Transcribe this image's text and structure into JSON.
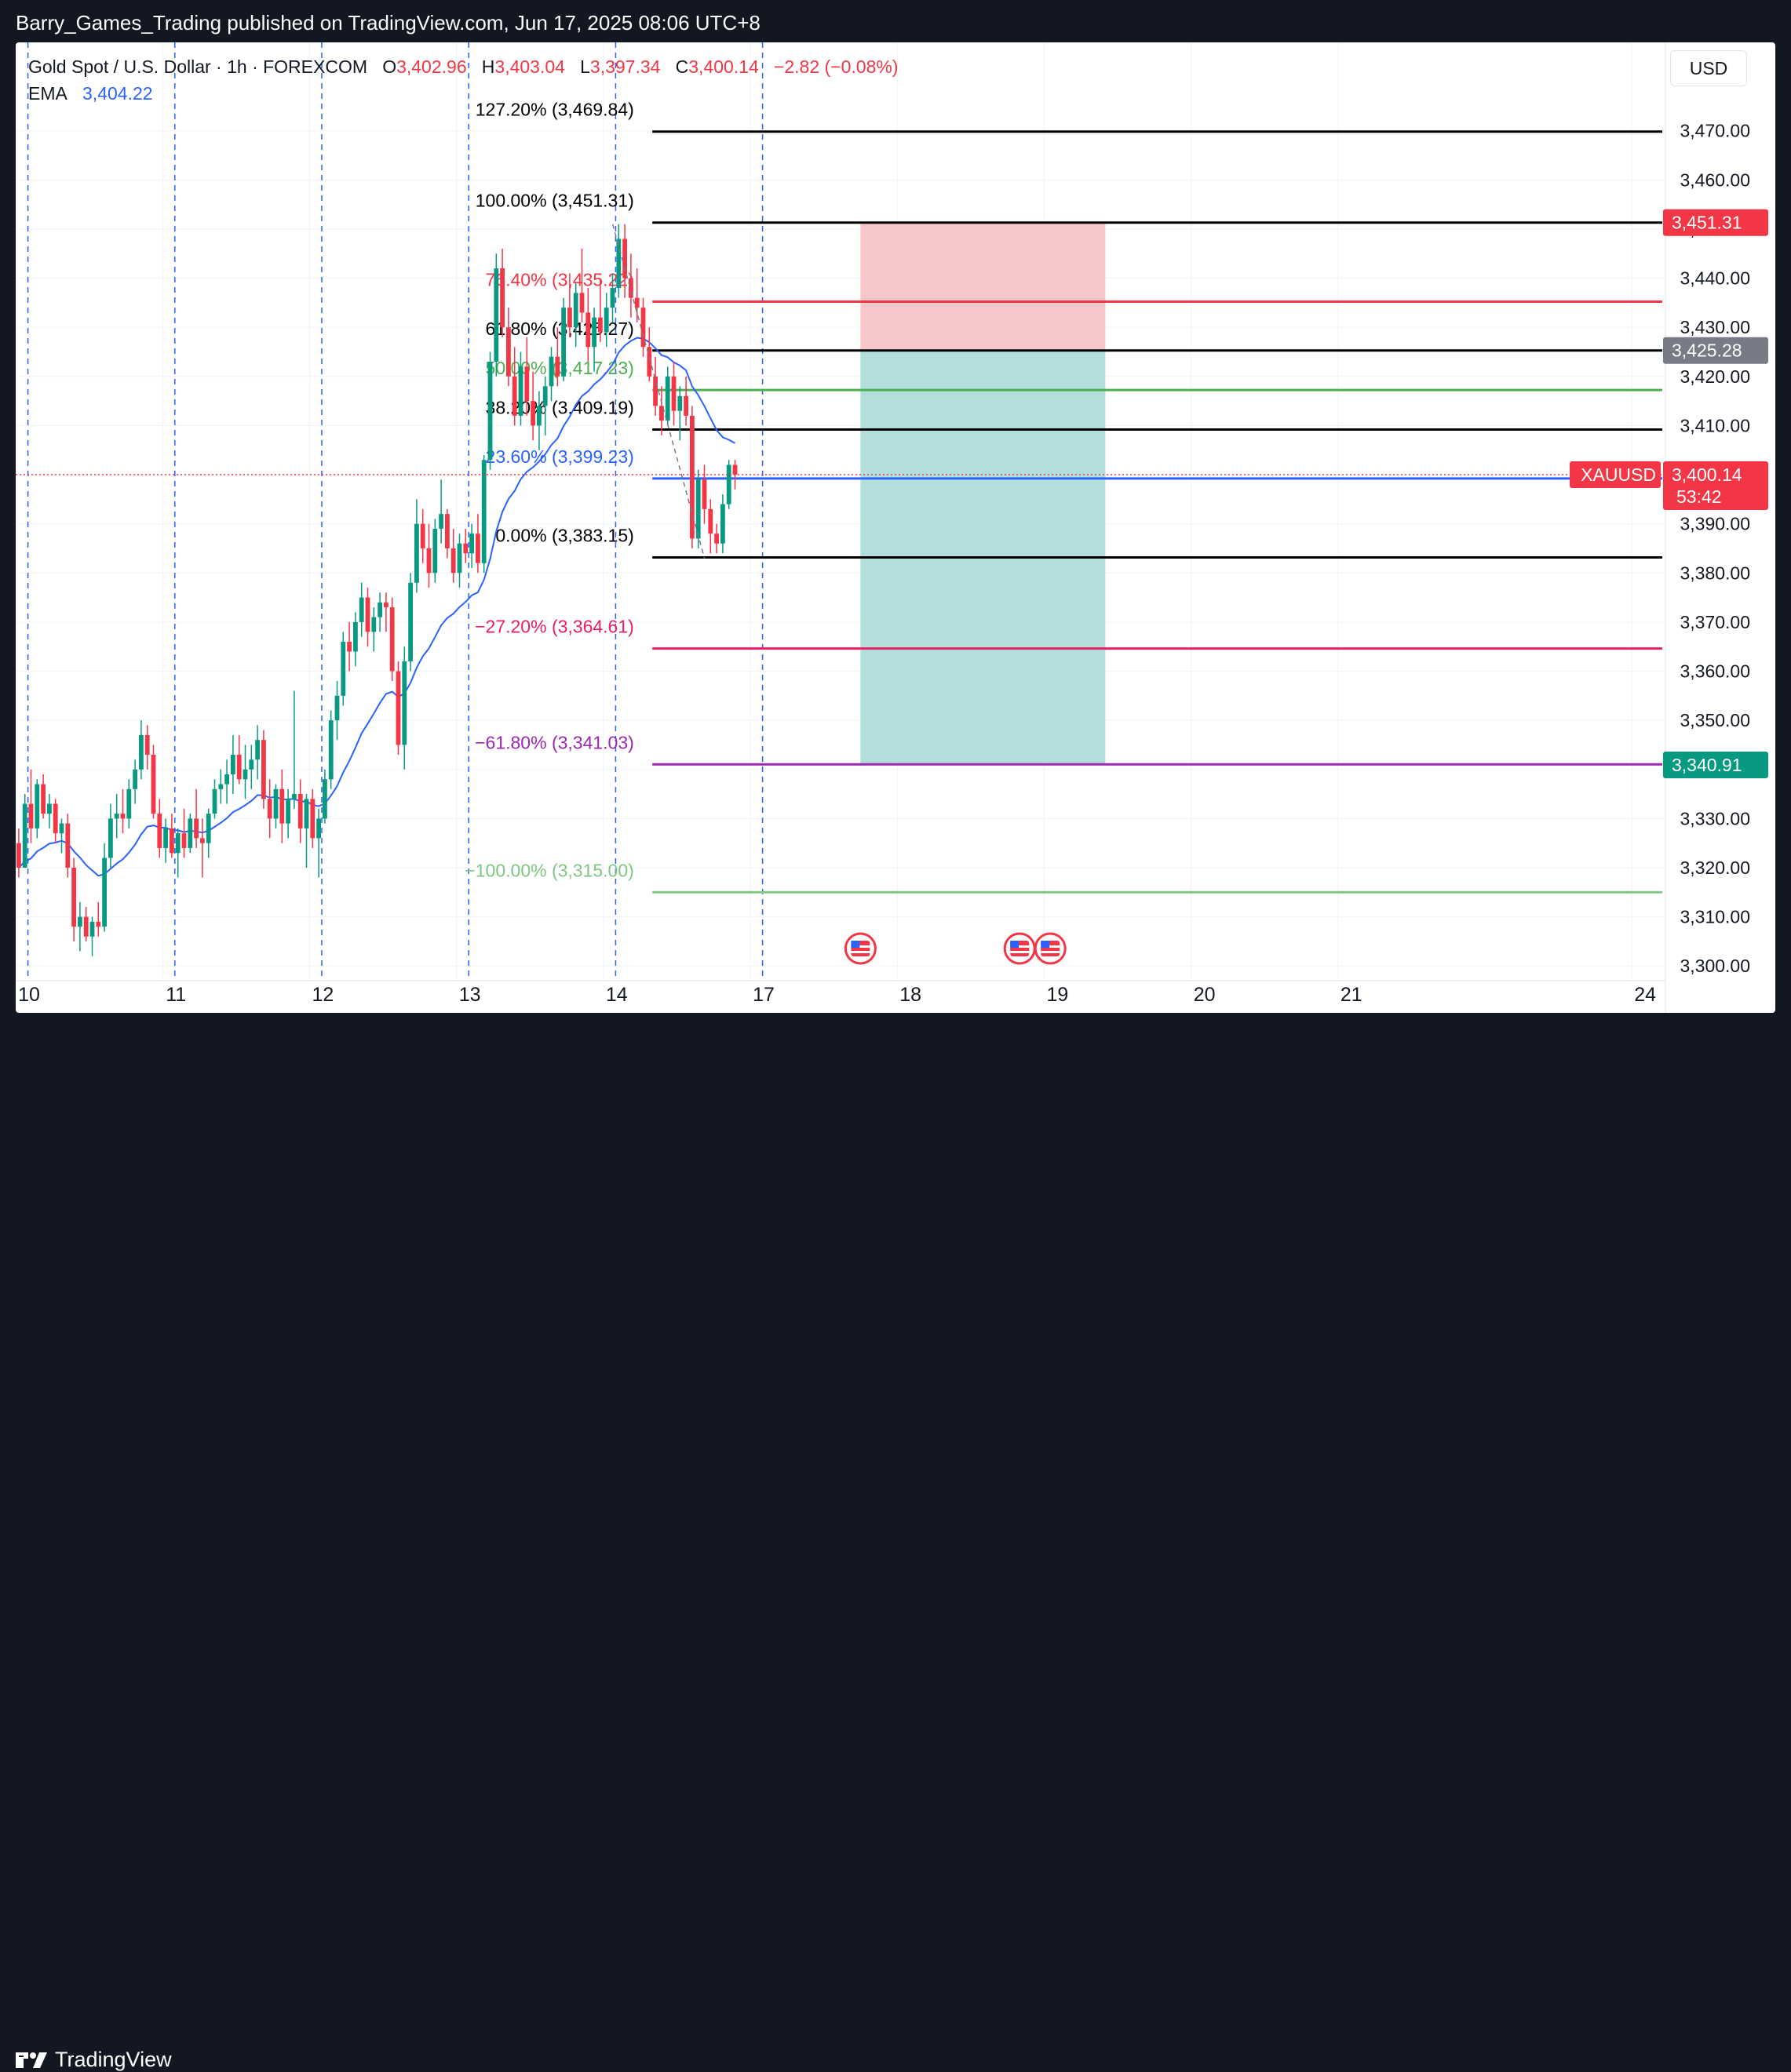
{
  "publisher_line": "Barry_Games_Trading published on TradingView.com, Jun 17, 2025 08:06 UTC+8",
  "footer": {
    "brand": "TradingView",
    "logo_icon": "tradingview-logo-icon"
  },
  "legend": {
    "symbol": "Gold Spot / U.S. Dollar · 1h · FOREXCOM",
    "o_label": "O",
    "o_value": "3,402.96",
    "h_label": "H",
    "h_value": "3,403.04",
    "l_label": "L",
    "l_value": "3,397.34",
    "c_label": "C",
    "c_value": "3,400.14",
    "change": "−2.82 (−0.08%)",
    "ema_label": "EMA",
    "ema_value": "3,404.22"
  },
  "currency_button": "USD",
  "colors": {
    "up": "#089981",
    "down": "#f23645",
    "ema": "#2962ff",
    "session_line": "#2962ff",
    "stop_zone": "#f7c6c8",
    "target_zone": "#b2dfdb"
  },
  "chart_data": {
    "type": "candlestick",
    "symbol": "XAUUSD",
    "timeframe": "1h",
    "ylim": [
      3297,
      3488
    ],
    "y_ticks": [
      "3,300.00",
      "3,310.00",
      "3,320.00",
      "3,330.00",
      "3,340.00",
      "3,350.00",
      "3,360.00",
      "3,370.00",
      "3,380.00",
      "3,390.00",
      "3,400.00",
      "3,410.00",
      "3,420.00",
      "3,430.00",
      "3,440.00",
      "3,450.00",
      "3,460.00",
      "3,470.00"
    ],
    "y_tick_values": [
      3300,
      3310,
      3320,
      3330,
      3340,
      3350,
      3360,
      3370,
      3380,
      3390,
      3400,
      3410,
      3420,
      3430,
      3440,
      3450,
      3460,
      3470
    ],
    "x_labels": [
      "10",
      "11",
      "12",
      "13",
      "14",
      "17",
      "18",
      "19",
      "20",
      "21",
      "24"
    ],
    "x_label_bars": [
      0,
      24,
      48,
      72,
      96,
      120,
      144,
      168,
      192,
      216,
      264
    ],
    "candles": [
      [
        3325,
        3328,
        3318,
        3320
      ],
      [
        3320,
        3335,
        3320,
        3333
      ],
      [
        3333,
        3340,
        3325,
        3328
      ],
      [
        3328,
        3338,
        3326,
        3337
      ],
      [
        3337,
        3339,
        3330,
        3331
      ],
      [
        3331,
        3335,
        3328,
        3333
      ],
      [
        3333,
        3334,
        3325,
        3327
      ],
      [
        3327,
        3330,
        3323,
        3329
      ],
      [
        3329,
        3331,
        3318,
        3320
      ],
      [
        3320,
        3322,
        3305,
        3308
      ],
      [
        3308,
        3313,
        3303,
        3310
      ],
      [
        3310,
        3312,
        3305,
        3306
      ],
      [
        3306,
        3310,
        3302,
        3309
      ],
      [
        3309,
        3313,
        3306,
        3308
      ],
      [
        3308,
        3325,
        3307,
        3322
      ],
      [
        3322,
        3333,
        3320,
        3330
      ],
      [
        3330,
        3335,
        3326,
        3331
      ],
      [
        3331,
        3336,
        3327,
        3330
      ],
      [
        3330,
        3338,
        3328,
        3336
      ],
      [
        3336,
        3342,
        3333,
        3340
      ],
      [
        3340,
        3350,
        3338,
        3347
      ],
      [
        3347,
        3349,
        3340,
        3343
      ],
      [
        3343,
        3345,
        3330,
        3331
      ],
      [
        3331,
        3334,
        3322,
        3324
      ],
      [
        3324,
        3330,
        3321,
        3328
      ],
      [
        3328,
        3331,
        3322,
        3323
      ],
      [
        3323,
        3328,
        3318,
        3327
      ],
      [
        3327,
        3332,
        3322,
        3324
      ],
      [
        3324,
        3331,
        3323,
        3330
      ],
      [
        3330,
        3336,
        3324,
        3326
      ],
      [
        3326,
        3330,
        3318,
        3325
      ],
      [
        3325,
        3332,
        3322,
        3331
      ],
      [
        3331,
        3338,
        3330,
        3336
      ],
      [
        3336,
        3340,
        3333,
        3337
      ],
      [
        3337,
        3342,
        3333,
        3339
      ],
      [
        3339,
        3347,
        3335,
        3343
      ],
      [
        3343,
        3347,
        3337,
        3338
      ],
      [
        3338,
        3345,
        3334,
        3340
      ],
      [
        3340,
        3345,
        3336,
        3342
      ],
      [
        3342,
        3349,
        3338,
        3346
      ],
      [
        3346,
        3348,
        3332,
        3334
      ],
      [
        3334,
        3338,
        3326,
        3330
      ],
      [
        3330,
        3337,
        3328,
        3336
      ],
      [
        3336,
        3340,
        3325,
        3329
      ],
      [
        3329,
        3336,
        3326,
        3334
      ],
      [
        3334,
        3356,
        3332,
        3335
      ],
      [
        3335,
        3338,
        3325,
        3328
      ],
      [
        3328,
        3335,
        3320,
        3334
      ],
      [
        3334,
        3336,
        3324,
        3326
      ],
      [
        3326,
        3332,
        3318,
        3330
      ],
      [
        3330,
        3340,
        3329,
        3338
      ],
      [
        3338,
        3352,
        3336,
        3350
      ],
      [
        3350,
        3358,
        3346,
        3355
      ],
      [
        3355,
        3368,
        3353,
        3366
      ],
      [
        3366,
        3370,
        3360,
        3364
      ],
      [
        3364,
        3372,
        3361,
        3370
      ],
      [
        3370,
        3378,
        3367,
        3375
      ],
      [
        3375,
        3377,
        3365,
        3368
      ],
      [
        3368,
        3373,
        3364,
        3371
      ],
      [
        3371,
        3376,
        3368,
        3374
      ],
      [
        3374,
        3376,
        3368,
        3373
      ],
      [
        3373,
        3375,
        3358,
        3360
      ],
      [
        3360,
        3362,
        3343,
        3345
      ],
      [
        3345,
        3365,
        3340,
        3362
      ],
      [
        3362,
        3380,
        3360,
        3378
      ],
      [
        3378,
        3395,
        3376,
        3390
      ],
      [
        3390,
        3393,
        3382,
        3385
      ],
      [
        3385,
        3390,
        3377,
        3380
      ],
      [
        3380,
        3391,
        3378,
        3389
      ],
      [
        3389,
        3399,
        3386,
        3392
      ],
      [
        3392,
        3393,
        3383,
        3385
      ],
      [
        3385,
        3389,
        3378,
        3380
      ],
      [
        3380,
        3388,
        3377,
        3386
      ],
      [
        3386,
        3389,
        3382,
        3384
      ],
      [
        3384,
        3390,
        3381,
        3388
      ],
      [
        3388,
        3392,
        3380,
        3382
      ],
      [
        3382,
        3404,
        3380,
        3403
      ],
      [
        3403,
        3425,
        3401,
        3423
      ],
      [
        3423,
        3445,
        3420,
        3442
      ],
      [
        3442,
        3446,
        3428,
        3430
      ],
      [
        3430,
        3434,
        3418,
        3420
      ],
      [
        3420,
        3426,
        3410,
        3412
      ],
      [
        3412,
        3425,
        3410,
        3422
      ],
      [
        3422,
        3428,
        3412,
        3415
      ],
      [
        3415,
        3421,
        3407,
        3410
      ],
      [
        3410,
        3417,
        3405,
        3414
      ],
      [
        3414,
        3420,
        3408,
        3418
      ],
      [
        3418,
        3426,
        3415,
        3424
      ],
      [
        3424,
        3430,
        3418,
        3420
      ],
      [
        3420,
        3436,
        3419,
        3434
      ],
      [
        3434,
        3441,
        3428,
        3430
      ],
      [
        3430,
        3439,
        3426,
        3437
      ],
      [
        3437,
        3446,
        3431,
        3433
      ],
      [
        3433,
        3438,
        3423,
        3426
      ],
      [
        3426,
        3434,
        3421,
        3432
      ],
      [
        3432,
        3440,
        3427,
        3429
      ],
      [
        3429,
        3437,
        3426,
        3434
      ],
      [
        3434,
        3441,
        3431,
        3438
      ],
      [
        3438,
        3451,
        3436,
        3448
      ],
      [
        3448,
        3451,
        3436,
        3440
      ],
      [
        3440,
        3445,
        3432,
        3436
      ],
      [
        3436,
        3442,
        3431,
        3434
      ],
      [
        3434,
        3436,
        3424,
        3426
      ],
      [
        3426,
        3430,
        3419,
        3420
      ],
      [
        3420,
        3424,
        3412,
        3414
      ],
      [
        3414,
        3418,
        3408,
        3411
      ],
      [
        3411,
        3422,
        3410,
        3420
      ],
      [
        3420,
        3423,
        3410,
        3413
      ],
      [
        3413,
        3418,
        3407,
        3416
      ],
      [
        3416,
        3420,
        3410,
        3412
      ],
      [
        3412,
        3414,
        3385,
        3387
      ],
      [
        3387,
        3401,
        3385,
        3399
      ],
      [
        3399,
        3402,
        3390,
        3393
      ],
      [
        3393,
        3395,
        3384,
        3388
      ],
      [
        3388,
        3390,
        3384,
        3386
      ],
      [
        3386,
        3396,
        3384,
        3394
      ],
      [
        3394,
        3403,
        3393,
        3402
      ],
      [
        3402,
        3403,
        3397,
        3400
      ]
    ],
    "ema_value": 3404.22,
    "last_price": "3,400.14",
    "countdown": "53:42",
    "session_break_bars": [
      2,
      26,
      50,
      74,
      98,
      122
    ],
    "fibonacci": [
      {
        "label": "127.20% (3,469.84)",
        "value": 3469.84,
        "color": "#000000"
      },
      {
        "label": "100.00% (3,451.31)",
        "value": 3451.31,
        "color": "#000000"
      },
      {
        "label": "76.40% (3,435.22)",
        "value": 3435.22,
        "color": "#f23645"
      },
      {
        "label": "61.80% (3,425.27)",
        "value": 3425.27,
        "color": "#000000"
      },
      {
        "label": "50.00% (3,417.23)",
        "value": 3417.23,
        "color": "#4caf50"
      },
      {
        "label": "38.20% (3,409.19)",
        "value": 3409.19,
        "color": "#000000"
      },
      {
        "label": "23.60% (3,399.23)",
        "value": 3399.23,
        "color": "#2962ff"
      },
      {
        "label": "0.00% (3,383.15)",
        "value": 3383.15,
        "color": "#000000"
      },
      {
        "label": "−27.20% (3,364.61)",
        "value": 3364.61,
        "color": "#e91e63"
      },
      {
        "label": "−61.80% (3,341.03)",
        "value": 3341.03,
        "color": "#9c27b0"
      },
      {
        "label": "−100.00% (3,315.00)",
        "value": 3315.0,
        "color": "#81c784"
      }
    ],
    "position": {
      "stop": 3451.31,
      "entry": 3425.28,
      "target": 3340.91,
      "start_bar": 138,
      "end_bar": 178
    },
    "price_tags": [
      {
        "value": "3,451.31",
        "num": 3451.31,
        "color": "#f23645"
      },
      {
        "value": "3,425.28",
        "num": 3425.28,
        "color": "#787b86"
      },
      {
        "value": "3,340.91",
        "num": 3340.91,
        "color": "#089981"
      }
    ],
    "event_markers": {
      "icon": "us-flag-icon",
      "bars": [
        138,
        164,
        169
      ]
    }
  }
}
